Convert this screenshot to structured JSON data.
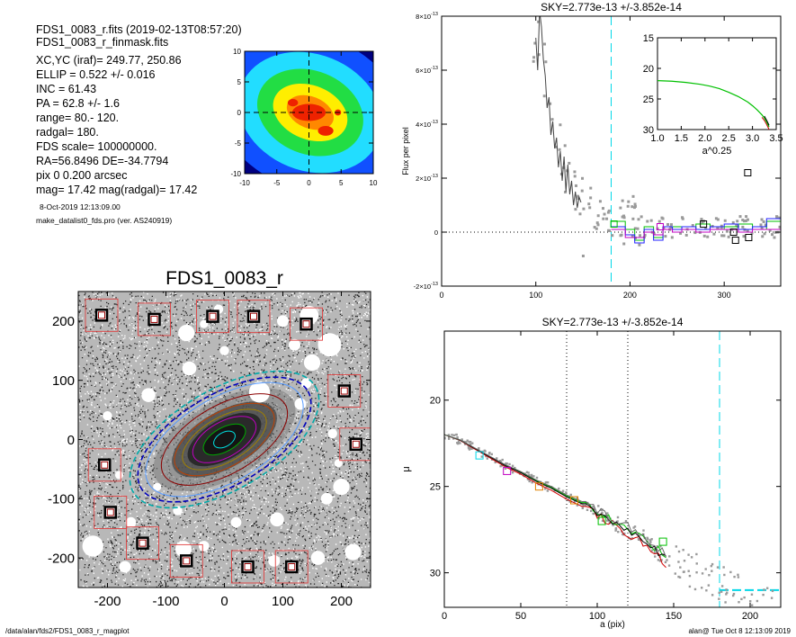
{
  "header": {
    "lines": [
      "FDS1_0083_r.fits  (2019-02-13T08:57:20)",
      "FDS1_0083_r_finmask.fits",
      "XC,YC (iraf)=   249.77, 250.86",
      "ELLIP = 0.522 +/- 0.016",
      "INC   = 61.43",
      "PA    = 62.8 +/-   1.6",
      "range=  80.-  120.",
      "radgal=  180.",
      "FDS scale=  100000000.",
      "RA=56.8496   DE=-34.7794",
      "pix 0 0.200 arcsec",
      "mag=  17.42  mag(radgal)=  17.42"
    ],
    "date_line": "8-Oct-2019 12:13:09.00",
    "program_line": "make_datalist0_fds.pro (ver. AS240919)"
  },
  "footer": {
    "path": "/data/alan/fds2/FDS1_0083_r_magplot",
    "stamp": "alan@  Tue Oct  8 12:13:09 2019"
  },
  "colors": {
    "fg": "#000000",
    "grey": "#9a9a9a",
    "cyan": "#00d8e8",
    "red": "#d00000",
    "green": "#00c000",
    "blue": "#2020ff",
    "magenta": "#c000c0",
    "orange": "#e08000"
  },
  "chart_data": [
    {
      "id": "contour",
      "type": "heatmap",
      "title": "",
      "xlabel": "",
      "ylabel": "",
      "xlim": [
        -10,
        10
      ],
      "ylim": [
        -10,
        10
      ],
      "x_ticks": [
        -10,
        -5,
        0,
        5,
        10
      ],
      "y_ticks": [
        -10,
        -5,
        0,
        5,
        10
      ],
      "x_tick_labels": [
        "-10",
        "-5",
        "0",
        "5",
        "10"
      ],
      "y_tick_labels": [
        "-10",
        "-5",
        "0",
        "5",
        "10"
      ],
      "levels": [
        {
          "color": "#000080",
          "a": 18,
          "b": 16
        },
        {
          "color": "#1050ff",
          "a": 15,
          "b": 12.5
        },
        {
          "color": "#22ddff",
          "a": 11.5,
          "b": 9.5
        },
        {
          "color": "#22dd44",
          "a": 8.5,
          "b": 6.8
        },
        {
          "color": "#ffee00",
          "a": 6,
          "b": 4.4
        },
        {
          "color": "#ff8800",
          "a": 3.8,
          "b": 2.6
        }
      ],
      "cores": [
        {
          "cx": 0,
          "cy": 0,
          "rx": 2.6,
          "ry": 1.4
        },
        {
          "cx": 2.6,
          "cy": -3,
          "rx": 1.2,
          "ry": 0.8
        },
        {
          "cx": -2.5,
          "cy": 1.6,
          "rx": 0.8,
          "ry": 0.6
        },
        {
          "cx": 4.5,
          "cy": 0,
          "rx": 0.5,
          "ry": 0.5
        }
      ]
    },
    {
      "id": "flux",
      "type": "line",
      "title": "SKY=2.773e-13 +/-3.852e-14",
      "xlabel": "",
      "ylabel": "Flux per pixel",
      "xlim": [
        0,
        360
      ],
      "ylim": [
        -2e-13,
        8e-13
      ],
      "x_ticks": [
        0,
        100,
        200,
        300
      ],
      "x_tick_labels": [
        "0",
        "100",
        "200",
        "300"
      ],
      "y_ticks": [
        -2e-13,
        0,
        2e-13,
        4e-13,
        6e-13,
        8e-13
      ],
      "y_tick_labels": [
        {
          "mant": "-2",
          "exp": "-13"
        },
        {
          "mant": "0",
          "exp": ""
        },
        {
          "mant": "2",
          "exp": "-13"
        },
        {
          "mant": "4",
          "exp": "-13"
        },
        {
          "mant": "6",
          "exp": "-13"
        },
        {
          "mant": "8",
          "exp": "-13"
        }
      ],
      "tick_prefix": "×10",
      "vline_cyan": 180,
      "profile": {
        "x": [
          100,
          102,
          104,
          106,
          108,
          110,
          112,
          114,
          116,
          118,
          120,
          122,
          124,
          126,
          128,
          130,
          132,
          134,
          136,
          138,
          140,
          142,
          144,
          146,
          148
        ],
        "y": [
          7.2e-13,
          6e-13,
          8.2e-13,
          7.6e-13,
          6.4e-13,
          5.8e-13,
          4.6e-13,
          5e-13,
          3.6e-13,
          4.1e-13,
          3.1e-13,
          3.5e-13,
          2.4e-13,
          3e-13,
          1.9e-13,
          2.8e-13,
          1.5e-13,
          2.5e-13,
          1.4e-13,
          1.9e-13,
          1e-13,
          1.5e-13,
          9e-14,
          1.3e-13,
          1.1e-13
        ]
      },
      "steps": [
        {
          "name": "",
          "color": "#00c000",
          "x": [
            180,
            195,
            205,
            215,
            225,
            235,
            245,
            255,
            270,
            285,
            300,
            315,
            330,
            345,
            360
          ],
          "y": [
            4e-14,
            1e-14,
            -3e-14,
            2e-14,
            -2e-14,
            1e-14,
            2e-14,
            1e-14,
            3e-14,
            1e-14,
            2e-14,
            3e-14,
            1e-14,
            4e-14,
            4e-14
          ]
        },
        {
          "name": "",
          "color": "#2020ff",
          "x": [
            180,
            195,
            205,
            215,
            225,
            235,
            245,
            255,
            270,
            285,
            300,
            315,
            330,
            345,
            360
          ],
          "y": [
            2e-14,
            -1e-14,
            -4e-14,
            1e-14,
            -3e-14,
            2e-14,
            1e-14,
            2e-14,
            1e-14,
            2e-14,
            3e-14,
            1e-14,
            2e-14,
            5e-14,
            3e-14
          ]
        },
        {
          "name": "",
          "color": "#c000c0",
          "x": [
            180,
            195,
            205,
            215,
            225,
            235,
            245,
            255,
            270,
            285,
            300,
            315,
            330,
            345,
            360
          ],
          "y": [
            1e-14,
            -2e-14,
            -2e-14,
            0.0,
            -1e-14,
            1e-14,
            0.0,
            1e-14,
            0.0,
            1e-14,
            1e-14,
            0.0,
            1e-14,
            1e-14,
            1e-14
          ]
        }
      ],
      "boxes": [
        {
          "x": 183,
          "y": 3e-14,
          "color": "#00c000"
        },
        {
          "x": 232,
          "y": 2e-14,
          "color": "#c000c0"
        },
        {
          "x": 278,
          "y": 3e-14,
          "color": "#000000"
        },
        {
          "x": 310,
          "y": 0.0,
          "color": "#000000"
        },
        {
          "x": 312,
          "y": -3e-14,
          "color": "#000000"
        },
        {
          "x": 325,
          "y": 2.2e-13,
          "color": "#000000"
        },
        {
          "x": 326,
          "y": -2e-14,
          "color": "#000000"
        }
      ],
      "scatter_seed": 7,
      "inset": {
        "xlabel": "a^0.25",
        "xlim": [
          1.0,
          3.5
        ],
        "ylim": [
          30,
          15
        ],
        "x_ticks": [
          1.0,
          1.5,
          2.0,
          2.5,
          3.0,
          3.5
        ],
        "x_tick_labels": [
          "1.0",
          "1.5",
          "2.0",
          "2.5",
          "3.0",
          "3.5"
        ],
        "y_ticks": [
          15,
          20,
          25,
          30
        ],
        "y_tick_labels": [
          "15",
          "20",
          "25",
          "30"
        ],
        "curve_x": [
          1.0,
          1.3,
          1.6,
          1.9,
          2.1,
          2.3,
          2.5,
          2.7,
          2.9,
          3.0,
          3.1,
          3.2,
          3.25,
          3.3,
          3.35
        ],
        "curve_y": [
          22.0,
          22.1,
          22.3,
          22.6,
          22.9,
          23.3,
          23.9,
          24.6,
          25.5,
          26.1,
          26.8,
          27.6,
          28.1,
          28.8,
          29.6
        ]
      }
    },
    {
      "id": "image",
      "type": "scatter",
      "title": "FDS1_0083_r",
      "xlabel": "",
      "ylabel": "",
      "xlim": [
        -250,
        250
      ],
      "ylim": [
        -250,
        250
      ],
      "x_ticks": [
        -200,
        -100,
        0,
        100,
        200
      ],
      "y_ticks": [
        -200,
        -100,
        0,
        100,
        200
      ],
      "x_tick_labels": [
        "-200",
        "-100",
        "0",
        "100",
        "200"
      ],
      "y_tick_labels": [
        "-200",
        "-100",
        "0",
        "100",
        "200"
      ],
      "pa_deg": 30,
      "ellipses": [
        {
          "a": 180,
          "b": 86,
          "color": "#00aaaa",
          "dash": true
        },
        {
          "a": 165,
          "b": 78,
          "color": "#0000bb",
          "dash": true
        },
        {
          "a": 150,
          "b": 72,
          "color": "#5599ff",
          "dash": false
        },
        {
          "a": 120,
          "b": 58,
          "color": "#8b0000",
          "dash": false
        },
        {
          "a": 95,
          "b": 46,
          "color": "#c04000",
          "dash": false
        },
        {
          "a": 80,
          "b": 38,
          "color": "#a08000",
          "dash": false
        },
        {
          "a": 60,
          "b": 30,
          "color": "#c000c0",
          "dash": false
        },
        {
          "a": 40,
          "b": 20,
          "color": "#00aa00",
          "dash": false
        },
        {
          "a": 20,
          "b": 12,
          "color": "#00e0e0",
          "dash": false
        }
      ],
      "masks": [
        {
          "x": 60,
          "y": 80,
          "r": 18
        },
        {
          "x": -65,
          "y": 180,
          "r": 14
        },
        {
          "x": 145,
          "y": 210,
          "r": 16
        },
        {
          "x": 180,
          "y": 160,
          "r": 20
        },
        {
          "x": 150,
          "y": 130,
          "r": 14
        },
        {
          "x": 120,
          "y": 160,
          "r": 10
        },
        {
          "x": -60,
          "y": 120,
          "r": 12
        },
        {
          "x": -130,
          "y": 75,
          "r": 12
        },
        {
          "x": 130,
          "y": 60,
          "r": 10
        },
        {
          "x": 200,
          "y": -80,
          "r": 14
        },
        {
          "x": -225,
          "y": -180,
          "r": 18
        },
        {
          "x": -170,
          "y": -215,
          "r": 10
        },
        {
          "x": -70,
          "y": -185,
          "r": 14
        },
        {
          "x": -35,
          "y": -180,
          "r": 9
        },
        {
          "x": 90,
          "y": -135,
          "r": 12
        },
        {
          "x": 175,
          "y": -100,
          "r": 10
        },
        {
          "x": 220,
          "y": -190,
          "r": 14
        },
        {
          "x": 160,
          "y": -200,
          "r": 12
        },
        {
          "x": -80,
          "y": -120,
          "r": 8
        },
        {
          "x": -160,
          "y": -140,
          "r": 9
        },
        {
          "x": 85,
          "y": -205,
          "r": 10
        },
        {
          "x": 185,
          "y": 10,
          "r": 8
        },
        {
          "x": -200,
          "y": 40,
          "r": 8
        },
        {
          "x": 100,
          "y": 200,
          "r": 10
        },
        {
          "x": -10,
          "y": 220,
          "r": 8
        },
        {
          "x": 20,
          "y": -140,
          "r": 9
        },
        {
          "x": 195,
          "y": -40,
          "r": 7
        },
        {
          "x": -180,
          "y": -60,
          "r": 7
        },
        {
          "x": 0,
          "y": 150,
          "r": 8
        },
        {
          "x": -115,
          "y": -80,
          "r": 7
        },
        {
          "x": 140,
          "y": 95,
          "r": 9
        },
        {
          "x": -35,
          "y": 195,
          "r": 7
        }
      ],
      "stars": [
        {
          "x": -210,
          "y": 210
        },
        {
          "x": -120,
          "y": 203
        },
        {
          "x": -20,
          "y": 208
        },
        {
          "x": 50,
          "y": 208
        },
        {
          "x": 140,
          "y": 195
        },
        {
          "x": 205,
          "y": 82
        },
        {
          "x": 225,
          "y": -8
        },
        {
          "x": -205,
          "y": -43
        },
        {
          "x": -195,
          "y": -123
        },
        {
          "x": -140,
          "y": -175
        },
        {
          "x": -65,
          "y": -205
        },
        {
          "x": 40,
          "y": -215
        },
        {
          "x": 115,
          "y": -215
        }
      ],
      "noise_seed": 11
    },
    {
      "id": "mu",
      "type": "line",
      "title": "SKY=2.773e-13 +/-3.852e-14",
      "xlabel": "a (pix)",
      "ylabel": "μ",
      "xlim": [
        0,
        220
      ],
      "ylim": [
        32,
        16
      ],
      "x_ticks": [
        0,
        50,
        100,
        150,
        200
      ],
      "x_tick_labels": [
        "0",
        "50",
        "100",
        "150",
        "200"
      ],
      "y_ticks": [
        20,
        25,
        30
      ],
      "y_tick_labels": [
        "20",
        "25",
        "30"
      ],
      "vlines_dotted": [
        80,
        120
      ],
      "vline_cyan": 180,
      "sky_level": 31.0,
      "profile_x": [
        0,
        10,
        20,
        30,
        40,
        50,
        60,
        70,
        80,
        90,
        100,
        105,
        110,
        115,
        120,
        125,
        130,
        135,
        140,
        145
      ],
      "profile_y": [
        22.0,
        22.3,
        22.8,
        23.3,
        23.8,
        24.2,
        24.7,
        25.1,
        25.6,
        26.0,
        26.5,
        26.8,
        27.0,
        27.3,
        27.5,
        27.8,
        28.0,
        28.4,
        28.8,
        29.2
      ],
      "boxes": [
        {
          "x": 23,
          "y": 23.2,
          "color": "#00d8e8"
        },
        {
          "x": 41,
          "y": 24.1,
          "color": "#c000c0"
        },
        {
          "x": 62,
          "y": 25.0,
          "color": "#e08000"
        },
        {
          "x": 85,
          "y": 25.8,
          "color": "#e08000"
        },
        {
          "x": 103,
          "y": 27.0,
          "color": "#00c000"
        },
        {
          "x": 143,
          "y": 28.2,
          "color": "#00c000"
        }
      ],
      "scatter_seed": 23
    }
  ]
}
